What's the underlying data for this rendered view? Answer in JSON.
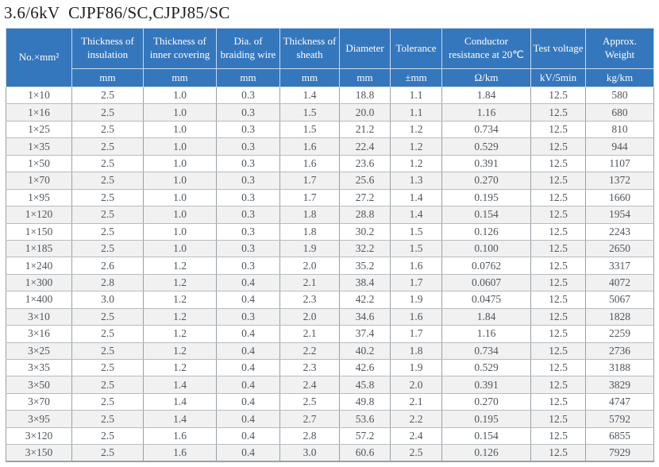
{
  "page": {
    "title": "3.6/6kV  CJPF86/SC,CJPJ85/SC"
  },
  "table": {
    "colors": {
      "header_bg": "#3577BD",
      "header_text": "#FFFFFF",
      "row_alt_bg": "#F1F1F1",
      "body_text": "#50565C"
    },
    "header": {
      "col_no": "No.×mm²",
      "cols": [
        {
          "label": "Thickness of insulation",
          "unit": "mm"
        },
        {
          "label": "Thickness of inner covering",
          "unit": "mm"
        },
        {
          "label": "Dia. of braiding wire",
          "unit": "mm"
        },
        {
          "label": "Thickness of sheath",
          "unit": "mm"
        },
        {
          "label": "Diameter",
          "unit": "mm"
        },
        {
          "label": "Tolerance",
          "unit": "±mm"
        },
        {
          "label": "Conductor resistance at 20℃",
          "unit": "Ω/km"
        },
        {
          "label": "Test voltage",
          "unit": "kV/5min"
        },
        {
          "label": "Approx. Weight",
          "unit": "kg/km"
        }
      ]
    },
    "rows": [
      [
        "1×10",
        "2.5",
        "1.0",
        "0.3",
        "1.4",
        "18.8",
        "1.1",
        "1.84",
        "12.5",
        "580"
      ],
      [
        "1×16",
        "2.5",
        "1.0",
        "0.3",
        "1.5",
        "20.0",
        "1.1",
        "1.16",
        "12.5",
        "680"
      ],
      [
        "1×25",
        "2.5",
        "1.0",
        "0.3",
        "1.5",
        "21.2",
        "1.2",
        "0.734",
        "12.5",
        "810"
      ],
      [
        "1×35",
        "2.5",
        "1.0",
        "0.3",
        "1.6",
        "22.4",
        "1.2",
        "0.529",
        "12.5",
        "944"
      ],
      [
        "1×50",
        "2.5",
        "1.0",
        "0.3",
        "1.6",
        "23.6",
        "1.2",
        "0.391",
        "12.5",
        "1107"
      ],
      [
        "1×70",
        "2.5",
        "1.0",
        "0.3",
        "1.7",
        "25.6",
        "1.3",
        "0.270",
        "12.5",
        "1372"
      ],
      [
        "1×95",
        "2.5",
        "1.0",
        "0.3",
        "1.7",
        "27.2",
        "1.4",
        "0.195",
        "12.5",
        "1660"
      ],
      [
        "1×120",
        "2.5",
        "1.0",
        "0.3",
        "1.8",
        "28.8",
        "1.4",
        "0.154",
        "12.5",
        "1954"
      ],
      [
        "1×150",
        "2.5",
        "1.0",
        "0.3",
        "1.8",
        "30.2",
        "1.5",
        "0.126",
        "12.5",
        "2243"
      ],
      [
        "1×185",
        "2.5",
        "1.0",
        "0.3",
        "1.9",
        "32.2",
        "1.5",
        "0.100",
        "12.5",
        "2650"
      ],
      [
        "1×240",
        "2.6",
        "1.2",
        "0.3",
        "2.0",
        "35.2",
        "1.6",
        "0.0762",
        "12.5",
        "3317"
      ],
      [
        "1×300",
        "2.8",
        "1.2",
        "0.4",
        "2.1",
        "38.4",
        "1.7",
        "0.0607",
        "12.5",
        "4072"
      ],
      [
        "1×400",
        "3.0",
        "1.2",
        "0.4",
        "2.3",
        "42.2",
        "1.9",
        "0.0475",
        "12.5",
        "5067"
      ],
      [
        "3×10",
        "2.5",
        "1.2",
        "0.3",
        "2.0",
        "34.6",
        "1.6",
        "1.84",
        "12.5",
        "1828"
      ],
      [
        "3×16",
        "2.5",
        "1.2",
        "0.4",
        "2.1",
        "37.4",
        "1.7",
        "1.16",
        "12.5",
        "2259"
      ],
      [
        "3×25",
        "2.5",
        "1.2",
        "0.4",
        "2.2",
        "40.2",
        "1.8",
        "0.734",
        "12.5",
        "2736"
      ],
      [
        "3×35",
        "2.5",
        "1.2",
        "0.4",
        "2.3",
        "42.6",
        "1.9",
        "0.529",
        "12.5",
        "3188"
      ],
      [
        "3×50",
        "2.5",
        "1.4",
        "0.4",
        "2.4",
        "45.8",
        "2.0",
        "0.391",
        "12.5",
        "3829"
      ],
      [
        "3×70",
        "2.5",
        "1.4",
        "0.4",
        "2.5",
        "49.8",
        "2.1",
        "0.270",
        "12.5",
        "4747"
      ],
      [
        "3×95",
        "2.5",
        "1.4",
        "0.4",
        "2.7",
        "53.6",
        "2.2",
        "0.195",
        "12.5",
        "5792"
      ],
      [
        "3×120",
        "2.5",
        "1.6",
        "0.4",
        "2.8",
        "57.2",
        "2.4",
        "0.154",
        "12.5",
        "6855"
      ],
      [
        "3×150",
        "2.5",
        "1.6",
        "0.4",
        "3.0",
        "60.6",
        "2.5",
        "0.126",
        "12.5",
        "7929"
      ]
    ]
  }
}
